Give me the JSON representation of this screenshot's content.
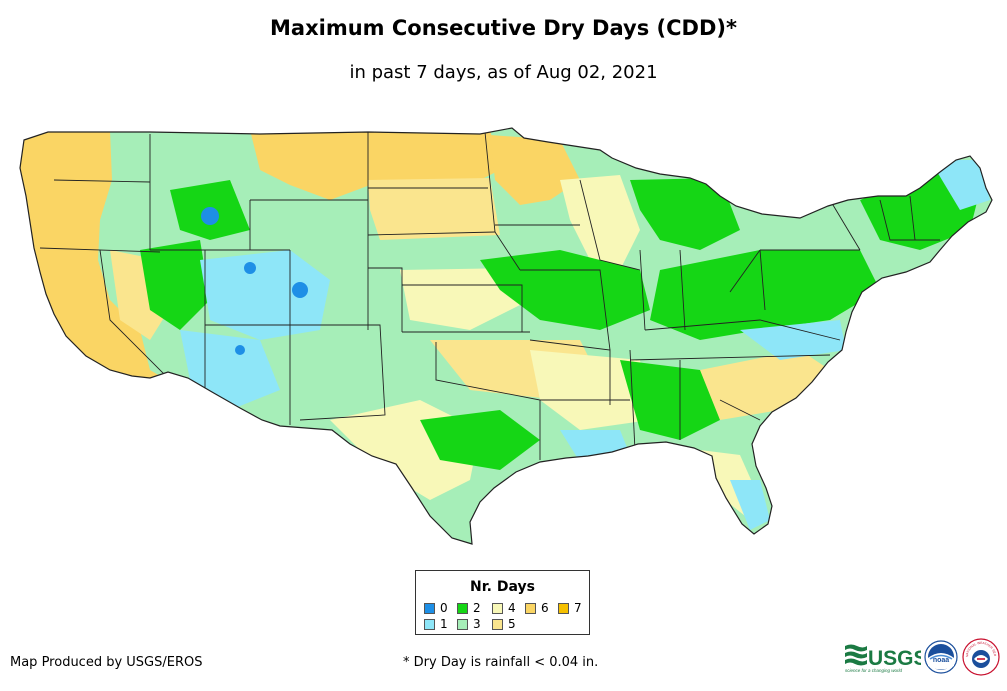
{
  "header": {
    "title": "Maximum Consecutive Dry Days (CDD)*",
    "subtitle": "in past 7 days, as of Aug 02, 2021"
  },
  "legend": {
    "title": "Nr. Days",
    "items": [
      {
        "label": "0",
        "color": "#1e8fe6"
      },
      {
        "label": "1",
        "color": "#8ee6f8"
      },
      {
        "label": "2",
        "color": "#15d615"
      },
      {
        "label": "3",
        "color": "#a6eeb8"
      },
      {
        "label": "4",
        "color": "#f8f8b8"
      },
      {
        "label": "5",
        "color": "#fae58e"
      },
      {
        "label": "6",
        "color": "#fad564"
      },
      {
        "label": "7",
        "color": "#f5c000"
      }
    ]
  },
  "footer": {
    "producer": "Map Produced by USGS/EROS",
    "note": "* Dry Day is rainfall < 0.04 in."
  },
  "logos": [
    {
      "name": "usgs-logo",
      "text": "USGS",
      "tagline": "science for a changing world"
    },
    {
      "name": "noaa-logo",
      "text": "noaa"
    },
    {
      "name": "nws-logo",
      "text": "NATIONAL WEATHER SERVICE"
    }
  ]
}
